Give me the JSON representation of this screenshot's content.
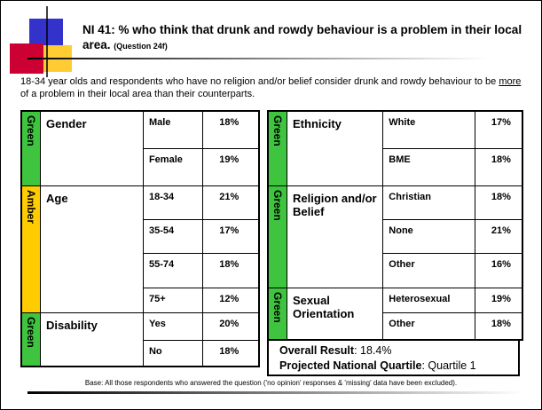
{
  "header": {
    "title": "NI 41: % who think that drunk and rowdy behaviour is a problem in their local area.",
    "question": "(Question 24f)"
  },
  "summary": {
    "before": "18-34 year olds and respondents who have no religion and/or belief consider drunk and rowdy behaviour to be ",
    "emphasis": "more",
    "after": " of a problem in their local area than their counterparts."
  },
  "left_table": [
    {
      "rating": "Green",
      "color": "#3ec43e",
      "label": "Gender",
      "rows": [
        [
          "Male",
          "18%"
        ],
        [
          "Female",
          "19%"
        ]
      ]
    },
    {
      "rating": "Amber",
      "color": "#ffcc00",
      "label": "Age",
      "rows": [
        [
          "18-34",
          "21%"
        ],
        [
          "35-54",
          "17%"
        ],
        [
          "55-74",
          "18%"
        ],
        [
          "75+",
          "12%"
        ]
      ]
    },
    {
      "rating": "Green",
      "color": "#3ec43e",
      "label": "Disability",
      "rows": [
        [
          "Yes",
          "20%"
        ],
        [
          "No",
          "18%"
        ]
      ]
    }
  ],
  "right_table": [
    {
      "rating": "Green",
      "color": "#3ec43e",
      "label": "Ethnicity",
      "rows": [
        [
          "White",
          "17%"
        ],
        [
          "BME",
          "18%"
        ]
      ]
    },
    {
      "rating": "Green",
      "color": "#3ec43e",
      "label": "Religion and/or Belief",
      "rows": [
        [
          "Christian",
          "18%"
        ],
        [
          "None",
          "21%"
        ],
        [
          "Other",
          "16%"
        ]
      ]
    },
    {
      "rating": "Green",
      "color": "#3ec43e",
      "label": "Sexual Orientation",
      "rows": [
        [
          "Heterosexual",
          "19%"
        ],
        [
          "Other",
          "18%"
        ]
      ]
    }
  ],
  "overall": {
    "result_label": "Overall Result",
    "result_value": ": 18.4%",
    "quartile_label": "Projected National Quartile",
    "quartile_value": ": Quartile 1"
  },
  "footer": "Base: All those respondents who answered the question ('no opinion' responses & 'missing' data have been excluded)."
}
